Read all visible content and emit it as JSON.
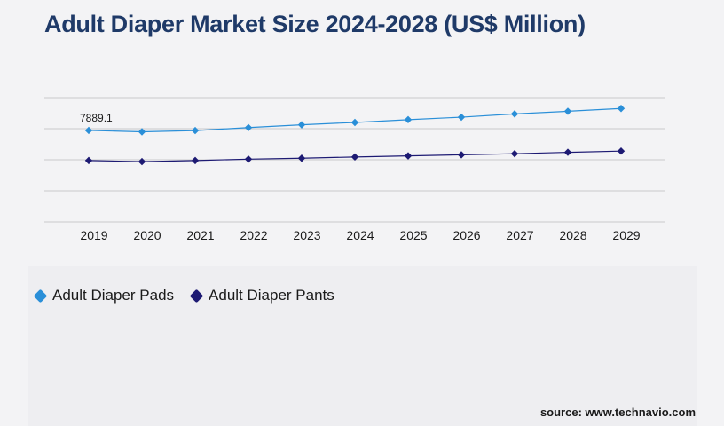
{
  "title": "Adult Diaper Market Size 2024-2028 (US$ Million)",
  "source": "source: www.technavio.com",
  "colors": {
    "pads": "#2a8fd8",
    "pants": "#1d1a73",
    "title": "#1f3a68"
  },
  "chart_data": {
    "type": "line",
    "title": "Adult Diaper Market Size 2024-2028 (US$ Million)",
    "categories": [
      "2019",
      "2020",
      "2021",
      "2022",
      "2023",
      "2024",
      "2025",
      "2026",
      "2027",
      "2028",
      "2029"
    ],
    "series": [
      {
        "name": "Adult Diaper Pads",
        "color": "#2a8fd8",
        "values": [
          7889.1,
          7800,
          7880,
          8070,
          8250,
          8400,
          8580,
          8740,
          8950,
          9120,
          9300
        ]
      },
      {
        "name": "Adult Diaper Pants",
        "color": "#1d1a73",
        "values": [
          5950,
          5880,
          5950,
          6040,
          6100,
          6180,
          6250,
          6320,
          6390,
          6480,
          6560
        ]
      }
    ],
    "data_labels": [
      {
        "series": 0,
        "index": 0,
        "text": "7889.1"
      }
    ],
    "ylim": [
      2000,
      12000
    ],
    "grid": true,
    "legend_position": "bottom-left"
  }
}
